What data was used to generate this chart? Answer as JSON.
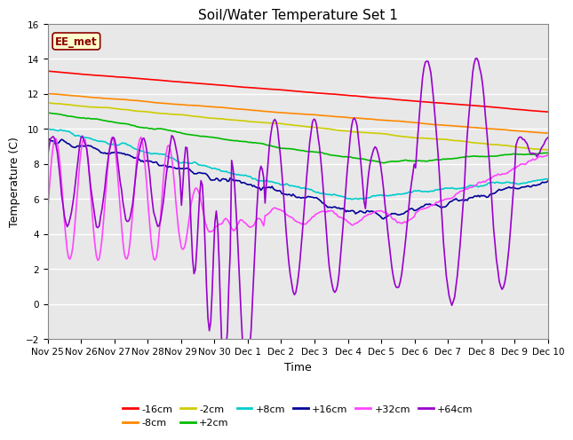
{
  "title": "Soil/Water Temperature Set 1",
  "xlabel": "Time",
  "ylabel": "Temperature (C)",
  "ylim": [
    -2,
    16
  ],
  "yticks": [
    -2,
    0,
    2,
    4,
    6,
    8,
    10,
    12,
    14,
    16
  ],
  "fig_bg": "#ffffff",
  "plot_bg": "#e8e8e8",
  "grid_color": "#ffffff",
  "annotation_text": "EE_met",
  "annotation_fg": "#8B0000",
  "annotation_bg": "#ffffcc",
  "annotation_edge": "#8B0000",
  "series_colors": {
    "-16cm": "#ff0000",
    "-8cm": "#ff8800",
    "-2cm": "#cccc00",
    "+2cm": "#00bb00",
    "+8cm": "#00cccc",
    "+16cm": "#000099",
    "+32cm": "#ff44ff",
    "+64cm": "#9900cc"
  },
  "x_labels": [
    "Nov 25",
    "Nov 26",
    "Nov 27",
    "Nov 28",
    "Nov 29",
    "Nov 30",
    "Dec 1",
    "Dec 2",
    "Dec 3",
    "Dec 4",
    "Dec 5",
    "Dec 6",
    "Dec 7",
    "Dec 8",
    "Dec 9",
    "Dec 10"
  ],
  "n_days": 15,
  "lw": 1.2
}
